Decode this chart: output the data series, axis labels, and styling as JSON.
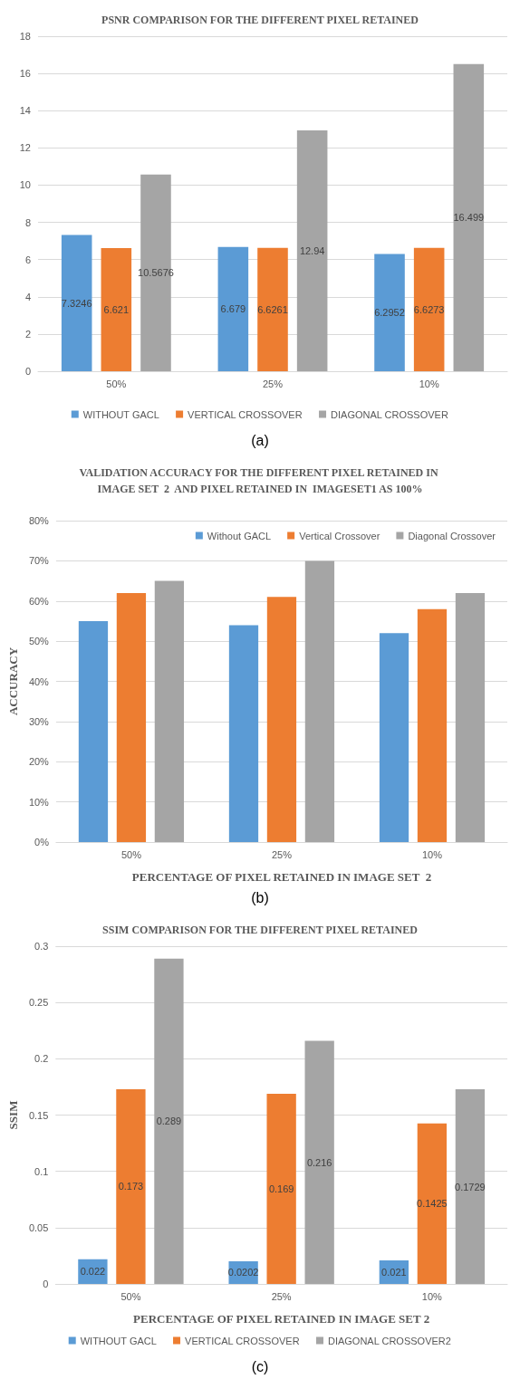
{
  "chart_data": [
    {
      "type": "bar",
      "title": "PSNR COMPARISON FOR THE DIFFERENT PIXEL RETAINED",
      "categories": [
        "50%",
        "25%",
        "10%"
      ],
      "series": [
        {
          "name": "WITHOUT GACL",
          "color": "#5b9bd5",
          "values": [
            7.3246,
            6.679,
            6.2952
          ]
        },
        {
          "name": "VERTICAL CROSSOVER",
          "color": "#ed7d31",
          "values": [
            6.621,
            6.6261,
            6.6273
          ]
        },
        {
          "name": "DIAGONAL CROSSOVER",
          "color": "#a5a5a5",
          "values": [
            10.5676,
            12.94,
            16.499
          ]
        }
      ],
      "ylim": [
        0,
        18
      ],
      "yticks": [
        0,
        2,
        4,
        6,
        8,
        10,
        12,
        14,
        16,
        18
      ],
      "grid": "y",
      "legend": "bottom",
      "data_labels": true,
      "annotations": [
        "(a)"
      ]
    },
    {
      "type": "bar",
      "title": "VALIDATION ACCURACY FOR THE DIFFERENT PIXEL RETAINED IN IMAGE SET  2  AND PIXEL RETAINED IN  IMAGESET1 AS 100%",
      "xlabel": "PERCENTAGE OF PIXEL RETAINED IN IMAGE SET  2",
      "ylabel": "ACCURACY",
      "categories": [
        "50%",
        "25%",
        "10%"
      ],
      "series": [
        {
          "name": "Without GACL",
          "color": "#5b9bd5",
          "values": [
            55,
            54,
            52
          ]
        },
        {
          "name": "Vertical Crossover",
          "color": "#ed7d31",
          "values": [
            62,
            61,
            58
          ]
        },
        {
          "name": "Diagonal Crossover",
          "color": "#a5a5a5",
          "values": [
            65,
            70,
            62
          ]
        }
      ],
      "ylim": [
        0,
        80
      ],
      "yticks": [
        {
          "value": 0,
          "label": "0%"
        },
        {
          "value": 10,
          "label": "10%"
        },
        {
          "value": 20,
          "label": "20%"
        },
        {
          "value": 30,
          "label": "30%"
        },
        {
          "value": 40,
          "label": "40%"
        },
        {
          "value": 50,
          "label": "50%"
        },
        {
          "value": 60,
          "label": "60%"
        },
        {
          "value": 70,
          "label": "70%"
        },
        {
          "value": 80,
          "label": "80%"
        }
      ],
      "grid": "y",
      "legend": "top right",
      "annotations": [
        "(b)"
      ]
    },
    {
      "type": "bar",
      "title": "SSIM COMPARISON FOR THE DIFFERENT PIXEL RETAINED",
      "xlabel": "PERCENTAGE OF PIXEL RETAINED IN IMAGE SET 2",
      "ylabel": "SSIM",
      "categories": [
        "50%",
        "25%",
        "10%"
      ],
      "series": [
        {
          "name": "WITHOUT GACL",
          "color": "#5b9bd5",
          "values": [
            0.022,
            0.0202,
            0.021
          ]
        },
        {
          "name": "VERTICAL CROSSOVER",
          "color": "#ed7d31",
          "values": [
            0.173,
            0.169,
            0.1425
          ]
        },
        {
          "name": "DIAGONAL CROSSOVER2",
          "color": "#a5a5a5",
          "values": [
            0.289,
            0.216,
            0.1729
          ]
        }
      ],
      "ylim": [
        0,
        0.3
      ],
      "yticks": [
        0,
        0.05,
        0.1,
        0.15,
        0.2,
        0.25,
        0.3
      ],
      "grid": "y",
      "legend": "bottom",
      "data_labels": true,
      "annotations": [
        "(c)"
      ]
    }
  ]
}
